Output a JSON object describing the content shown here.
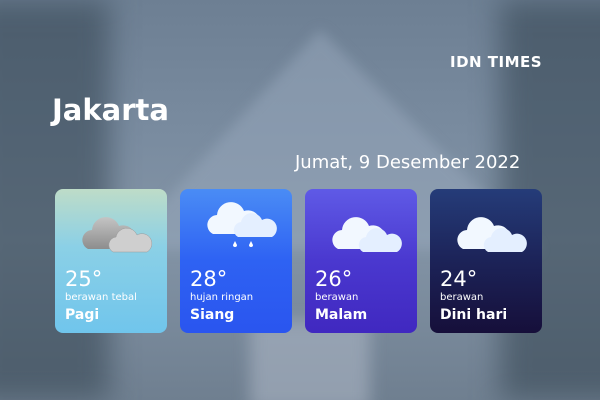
{
  "brand": "IDN TIMES",
  "city": "Jakarta",
  "date": "Jumat, 9 Desember 2022",
  "cards": [
    {
      "temp": "25°",
      "desc": "berawan tebal",
      "period": "Pagi",
      "icon": "dark-cloud-icon"
    },
    {
      "temp": "28°",
      "desc": "hujan ringan",
      "period": "Siang",
      "icon": "rain-cloud-icon"
    },
    {
      "temp": "26°",
      "desc": "berawan",
      "period": "Malam",
      "icon": "cloud-icon"
    },
    {
      "temp": "24°",
      "desc": "berawan",
      "period": "Dini hari",
      "icon": "cloud-icon"
    }
  ]
}
